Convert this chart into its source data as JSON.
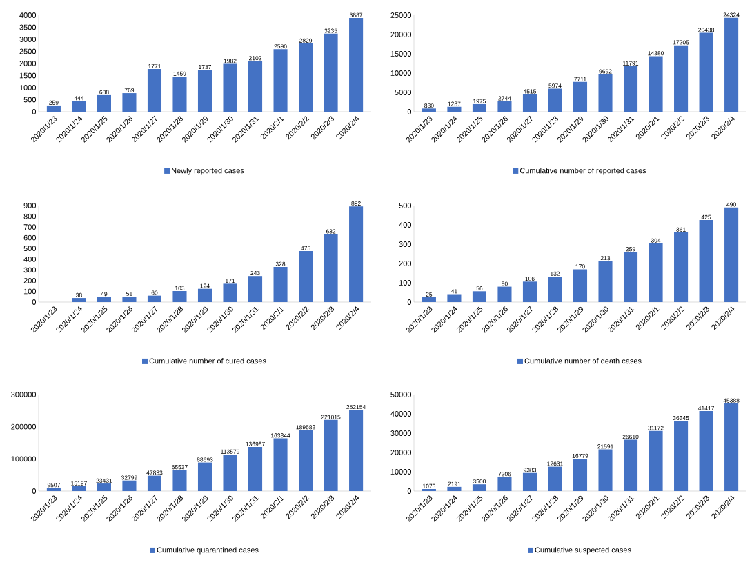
{
  "chart_data": [
    {
      "type": "bar",
      "categories": [
        "2020/1/23",
        "2020/1/24",
        "2020/1/25",
        "2020/1/26",
        "2020/1/27",
        "2020/1/28",
        "2020/1/29",
        "2020/1/30",
        "2020/1/31",
        "2020/2/1",
        "2020/2/2",
        "2020/2/3",
        "2020/2/4"
      ],
      "series": [
        {
          "name": "Newly reported cases",
          "color": "#4472c4",
          "values": [
            259,
            444,
            688,
            769,
            1771,
            1459,
            1737,
            1982,
            2102,
            2590,
            2829,
            3235,
            3887
          ]
        }
      ],
      "ylim": [
        0,
        4000
      ],
      "yticks": [
        0,
        500,
        1000,
        1500,
        2000,
        2500,
        3000,
        3500,
        4000
      ],
      "data_labels": true,
      "legend": "bottom"
    },
    {
      "type": "bar",
      "categories": [
        "2020/1/23",
        "2020/1/24",
        "2020/1/25",
        "2020/1/26",
        "2020/1/27",
        "2020/1/28",
        "2020/1/29",
        "2020/1/30",
        "2020/1/31",
        "2020/2/1",
        "2020/2/2",
        "2020/2/3",
        "2020/2/4"
      ],
      "series": [
        {
          "name": "Cumulative number of reported cases",
          "color": "#4472c4",
          "values": [
            830,
            1287,
            1975,
            2744,
            4515,
            5974,
            7711,
            9692,
            11791,
            14380,
            17205,
            20438,
            24324
          ]
        }
      ],
      "ylim": [
        0,
        25000
      ],
      "yticks": [
        0,
        5000,
        10000,
        15000,
        20000,
        25000
      ],
      "data_labels": true,
      "legend": "bottom"
    },
    {
      "type": "bar",
      "categories": [
        "2020/1/23",
        "2020/1/24",
        "2020/1/25",
        "2020/1/26",
        "2020/1/27",
        "2020/1/28",
        "2020/1/29",
        "2020/1/30",
        "2020/1/31",
        "2020/2/1",
        "2020/2/2",
        "2020/2/3",
        "2020/2/4"
      ],
      "series": [
        {
          "name": "Cumulative number of cured cases",
          "color": "#4472c4",
          "values": [
            null,
            38,
            49,
            51,
            60,
            103,
            124,
            171,
            243,
            328,
            475,
            632,
            892
          ]
        }
      ],
      "ylim": [
        0,
        900
      ],
      "yticks": [
        0,
        100,
        200,
        300,
        400,
        500,
        600,
        700,
        800,
        900
      ],
      "data_labels": true,
      "legend": "bottom"
    },
    {
      "type": "bar",
      "categories": [
        "2020/1/23",
        "2020/1/24",
        "2020/1/25",
        "2020/1/26",
        "2020/1/27",
        "2020/1/28",
        "2020/1/29",
        "2020/1/30",
        "2020/1/31",
        "2020/2/1",
        "2020/2/2",
        "2020/2/3",
        "2020/2/4"
      ],
      "series": [
        {
          "name": "Cumulative number of death cases",
          "color": "#4472c4",
          "values": [
            25,
            41,
            56,
            80,
            106,
            132,
            170,
            213,
            259,
            304,
            361,
            425,
            490
          ]
        }
      ],
      "ylim": [
        0,
        500
      ],
      "yticks": [
        0,
        100,
        200,
        300,
        400,
        500
      ],
      "data_labels": true,
      "legend": "bottom"
    },
    {
      "type": "bar",
      "categories": [
        "2020/1/23",
        "2020/1/24",
        "2020/1/25",
        "2020/1/26",
        "2020/1/27",
        "2020/1/28",
        "2020/1/29",
        "2020/1/30",
        "2020/1/31",
        "2020/2/1",
        "2020/2/2",
        "2020/2/3",
        "2020/2/4"
      ],
      "series": [
        {
          "name": "Cumulative quarantined cases",
          "color": "#4472c4",
          "values": [
            9507,
            15197,
            23431,
            32799,
            47833,
            65537,
            88693,
            113579,
            136987,
            163844,
            189583,
            221015,
            252154
          ]
        }
      ],
      "ylim": [
        0,
        300000
      ],
      "yticks": [
        0,
        100000,
        200000,
        300000
      ],
      "data_labels": true,
      "legend": "bottom"
    },
    {
      "type": "bar",
      "categories": [
        "2020/1/23",
        "2020/1/24",
        "2020/1/25",
        "2020/1/26",
        "2020/1/27",
        "2020/1/28",
        "2020/1/29",
        "2020/1/30",
        "2020/1/31",
        "2020/2/1",
        "2020/2/2",
        "2020/2/3",
        "2020/2/4"
      ],
      "series": [
        {
          "name": "Cumulative suspected cases",
          "color": "#4472c4",
          "values": [
            1073,
            2191,
            3500,
            7306,
            9383,
            12631,
            16779,
            21591,
            26610,
            31172,
            36345,
            41417,
            45388
          ]
        }
      ],
      "ylim": [
        0,
        50000
      ],
      "yticks": [
        0,
        10000,
        20000,
        30000,
        40000,
        50000
      ],
      "data_labels": true,
      "legend": "bottom"
    }
  ]
}
